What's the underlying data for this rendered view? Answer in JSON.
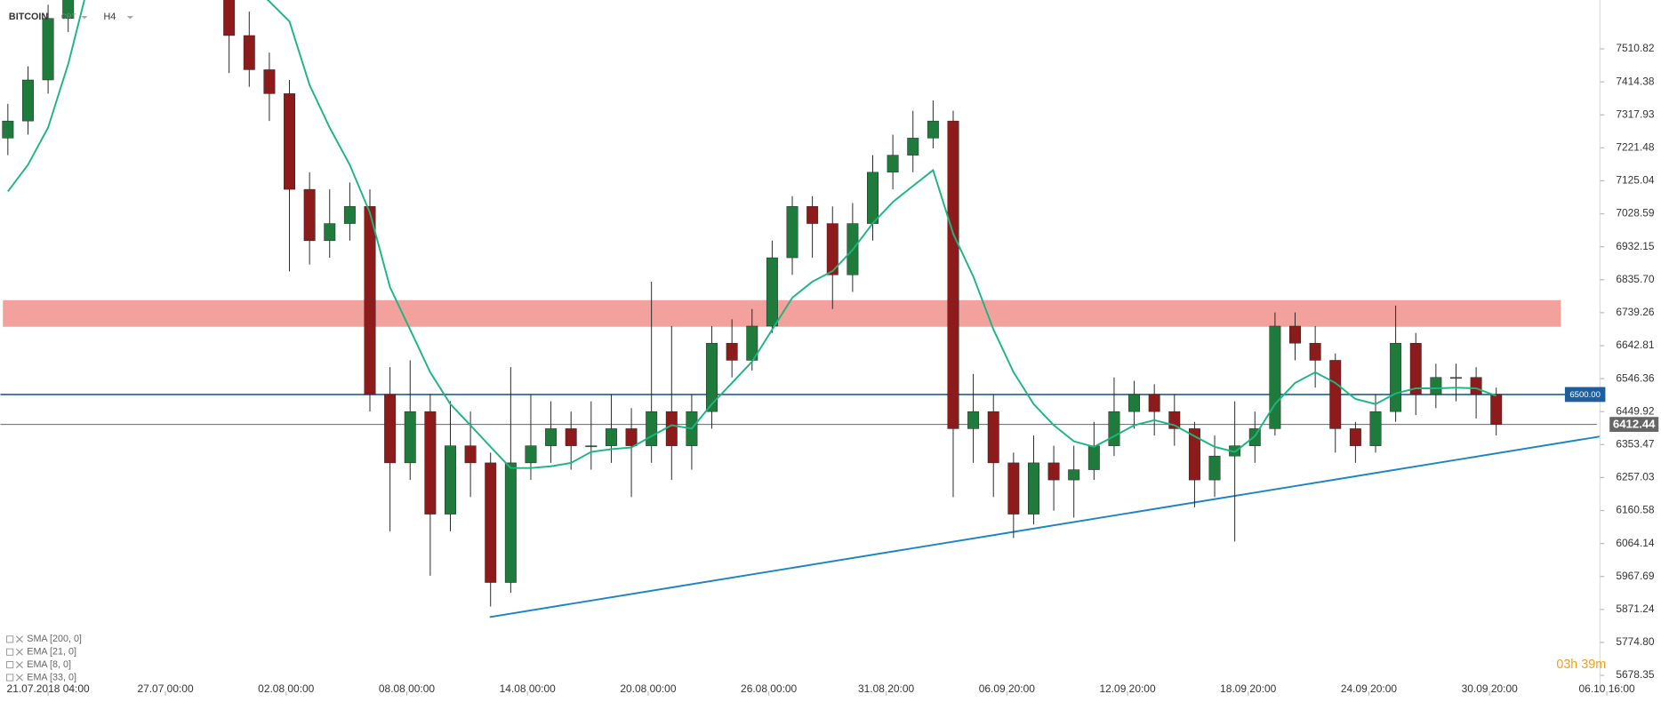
{
  "symbol": "BITCOIN",
  "account": "CRT",
  "timeframe": "H4",
  "indicators": [
    "SMA [200, 0]",
    "EMA [21, 0]",
    "EMA [8, 0]",
    "EMA [33, 0]"
  ],
  "timer": "03h 39m",
  "chart_data": {
    "type": "candlestick",
    "xlim": [
      -57,
      1848
    ],
    "ylim": [
      5631.6,
      7653.9
    ],
    "xticks": [
      {
        "value": 0,
        "label": "21.07.2018 04:00"
      },
      {
        "value": 140,
        "label": "27.07 00:00"
      },
      {
        "value": 284,
        "label": "02.08 00:00"
      },
      {
        "value": 428,
        "label": "08.08 00:00"
      },
      {
        "value": 572,
        "label": "14.08 00:00"
      },
      {
        "value": 716,
        "label": "20.08 00:00"
      },
      {
        "value": 860,
        "label": "26.08 00:00"
      },
      {
        "value": 1000,
        "label": "31.08 20:00"
      },
      {
        "value": 1144,
        "label": "06.09 20:00"
      },
      {
        "value": 1288,
        "label": "12.09 20:00"
      },
      {
        "value": 1432,
        "label": "18.09 20:00"
      },
      {
        "value": 1576,
        "label": "24.09 20:00"
      },
      {
        "value": 1720,
        "label": "30.09 20:00"
      },
      {
        "value": 1860,
        "label": "06.10 16:00"
      }
    ],
    "yticks": [
      7510.82,
      7414.38,
      7317.93,
      7221.48,
      7125.04,
      7028.59,
      6932.15,
      {
        "value": 6835.7,
        "label": "6835.70"
      },
      6739.26,
      6642.81,
      6546.36,
      6449.92,
      6353.47,
      6257.03,
      6160.58,
      6064.14,
      5967.69,
      5871.24,
      {
        "value": 5774.8,
        "label": "5774.80"
      },
      5678.35
    ],
    "up_color": "#1e7b3c",
    "down_color": "#8e1b1b",
    "wick_color": "#222222",
    "x": [
      -48,
      -24,
      0,
      24,
      48,
      72,
      96,
      120,
      144,
      168,
      192,
      216,
      240,
      264,
      288,
      312,
      336,
      360,
      384,
      408,
      432,
      456,
      480,
      504,
      528,
      552,
      576,
      600,
      624,
      648,
      672,
      696,
      720,
      744,
      768,
      792,
      816,
      840,
      864,
      888,
      912,
      936,
      960,
      984,
      1008,
      1032,
      1056,
      1080,
      1104,
      1128,
      1152,
      1176,
      1200,
      1224,
      1248,
      1272,
      1296,
      1320,
      1344,
      1368,
      1392,
      1416,
      1440,
      1464,
      1488,
      1512,
      1536,
      1560,
      1584,
      1608,
      1632,
      1656,
      1680,
      1704,
      1728
    ],
    "open": [
      7250,
      7300,
      7420,
      7600,
      7850,
      8100,
      8250,
      8200,
      8100,
      8200,
      8150,
      8200,
      7550,
      7450,
      7380,
      7100,
      6950,
      7000,
      7050,
      6500,
      6300,
      6450,
      6150,
      6350,
      6300,
      5950,
      6300,
      6350,
      6400,
      6350,
      6350,
      6400,
      6350,
      6450,
      6350,
      6450,
      6650,
      6600,
      6700,
      6900,
      7050,
      7000,
      6850,
      7000,
      7150,
      7200,
      7250,
      7300,
      6400,
      6450,
      6300,
      6150,
      6300,
      6250,
      6280,
      6350,
      6450,
      6500,
      6450,
      6400,
      6250,
      6320,
      6350,
      6400,
      6700,
      6650,
      6600,
      6400,
      6350,
      6450,
      6650,
      6500,
      6550,
      6550,
      6500
    ],
    "high": [
      7350,
      7460,
      7640,
      7900,
      8150,
      8300,
      8320,
      8250,
      8260,
      8250,
      8260,
      8230,
      7620,
      7500,
      7420,
      7150,
      7100,
      7120,
      7100,
      6580,
      6600,
      6500,
      6480,
      6450,
      6330,
      6580,
      6500,
      6480,
      6450,
      6480,
      6500,
      6460,
      6830,
      6700,
      6500,
      6700,
      6720,
      6750,
      6950,
      7080,
      7080,
      7050,
      7060,
      7200,
      7260,
      7330,
      7360,
      7330,
      6560,
      6500,
      6330,
      6380,
      6350,
      6350,
      6420,
      6550,
      6540,
      6530,
      6500,
      6420,
      6380,
      6480,
      6450,
      6740,
      6740,
      6700,
      6620,
      6420,
      6500,
      6760,
      6680,
      6590,
      6590,
      6580,
      6520
    ],
    "low": [
      7200,
      7260,
      7380,
      7560,
      7800,
      8050,
      8150,
      8050,
      8060,
      8100,
      8100,
      7440,
      7400,
      7300,
      6860,
      6880,
      6900,
      6950,
      6450,
      6100,
      6250,
      5970,
      6100,
      6200,
      5880,
      5920,
      6250,
      6300,
      6280,
      6280,
      6300,
      6200,
      6300,
      6250,
      6280,
      6400,
      6550,
      6570,
      6680,
      6850,
      6900,
      6750,
      6800,
      6950,
      7100,
      7150,
      7220,
      6200,
      6300,
      6200,
      6080,
      6120,
      6160,
      6140,
      6250,
      6320,
      6400,
      6380,
      6350,
      6170,
      6200,
      6070,
      6300,
      6380,
      6600,
      6520,
      6330,
      6300,
      6330,
      6420,
      6440,
      6460,
      6480,
      6430,
      6380
    ],
    "close": [
      7300,
      7420,
      7600,
      7850,
      8100,
      8250,
      8200,
      8100,
      8200,
      8150,
      8200,
      7550,
      7450,
      7380,
      7100,
      6950,
      7000,
      7050,
      6500,
      6300,
      6450,
      6150,
      6350,
      6300,
      5950,
      6300,
      6350,
      6400,
      6350,
      6350,
      6400,
      6350,
      6450,
      6350,
      6450,
      6650,
      6600,
      6700,
      6900,
      7050,
      7000,
      6850,
      7000,
      7150,
      7200,
      7250,
      7300,
      6400,
      6450,
      6300,
      6150,
      6300,
      6250,
      6280,
      6350,
      6450,
      6500,
      6450,
      6400,
      6250,
      6320,
      6350,
      6400,
      6700,
      6650,
      6600,
      6400,
      6350,
      6450,
      6650,
      6500,
      6550,
      6550,
      6500,
      6412.44
    ],
    "ema": {
      "color": "#1db57f",
      "values": [
        7094,
        7172,
        7281,
        7467,
        7700,
        7800,
        7850,
        7900,
        7950,
        7950,
        7900,
        7800,
        7700,
        7650,
        7591,
        7405,
        7281,
        7172,
        7032,
        6814,
        6690,
        6565,
        6472,
        6410,
        6347,
        6285,
        6285,
        6290,
        6300,
        6332,
        6340,
        6345,
        6378,
        6410,
        6400,
        6472,
        6534,
        6596,
        6690,
        6783,
        6830,
        6861,
        6923,
        7001,
        7063,
        7110,
        7156,
        6970,
        6845,
        6690,
        6565,
        6472,
        6410,
        6363,
        6347,
        6378,
        6410,
        6425,
        6410,
        6378,
        6347,
        6332,
        6378,
        6472,
        6534,
        6565,
        6534,
        6487,
        6472,
        6503,
        6518,
        6518,
        6520,
        6518,
        6496
      ]
    },
    "zone": {
      "from": 6698,
      "to": 6776,
      "x": [
        -54,
        1805
      ],
      "color": "#f08a85"
    },
    "levels": [
      {
        "value": {
          "value": 6500,
          "label": "6500.00"
        },
        "color": "#1f5e9c"
      },
      {
        "value": 6412.44,
        "color": "#666666"
      }
    ],
    "trendline": {
      "x": [
        527,
        1854
      ],
      "y": [
        5849,
        6378
      ],
      "color": "#1b84c6"
    }
  }
}
